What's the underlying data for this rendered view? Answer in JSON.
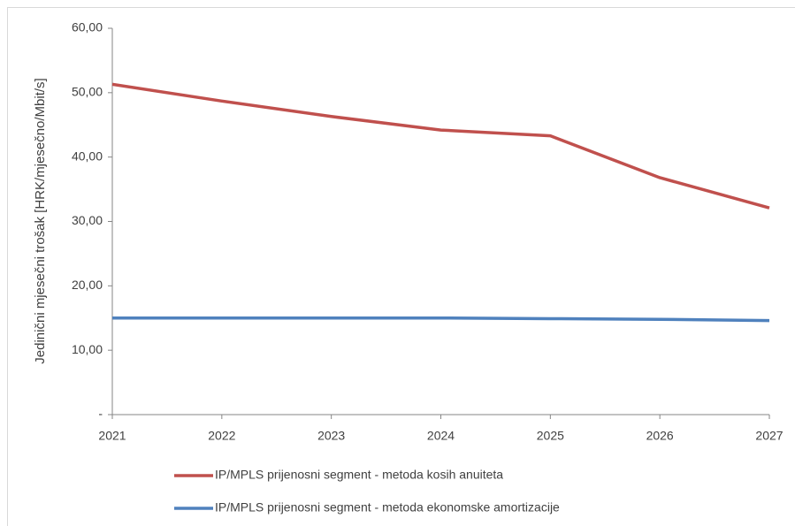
{
  "chart_data": {
    "type": "line",
    "y_label": "Jedinični mjesečni trošak [HRK/mjesečno/Mbit/s]",
    "categories": [
      "2021",
      "2022",
      "2023",
      "2024",
      "2025",
      "2026",
      "2027"
    ],
    "series": [
      {
        "name": "IP/MPLS prijenosni segment - metoda kosih anuiteta",
        "color": "#c0504d",
        "values": [
          51.3,
          48.7,
          46.3,
          44.2,
          43.3,
          36.8,
          32.1
        ]
      },
      {
        "name": "IP/MPLS prijenosni segment - metoda ekonomske amortizacije",
        "color": "#4f81bd",
        "values": [
          15.0,
          15.0,
          15.0,
          15.0,
          14.9,
          14.8,
          14.6
        ]
      }
    ],
    "ylim": [
      0,
      60
    ],
    "yticks": [
      {
        "value": 0,
        "label": "-"
      },
      {
        "value": 10,
        "label": "10,00"
      },
      {
        "value": 20,
        "label": "20,00"
      },
      {
        "value": 30,
        "label": "30,00"
      },
      {
        "value": 40,
        "label": "40,00"
      },
      {
        "value": 50,
        "label": "50,00"
      },
      {
        "value": 60,
        "label": "60,00"
      }
    ],
    "grid": false
  }
}
